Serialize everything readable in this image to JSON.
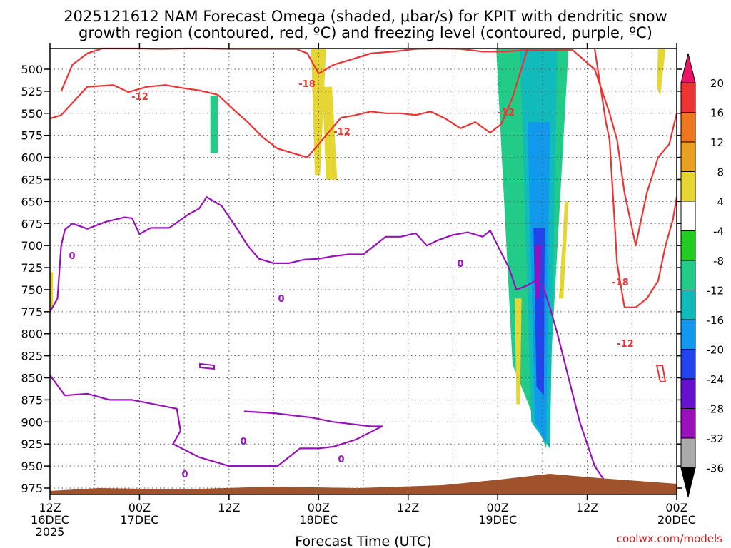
{
  "chart_data": {
    "type": "time-pressure cross-section (shaded omega with contours)",
    "title_line1": "2025121612 NAM Forecast Omega (shaded, μbar/s) for KPIT with dendritic snow",
    "title_line2": "growth region (contoured, red, ºC) and freezing level (contoured, purple, ºC)",
    "xlabel": "Forecast Time (UTC)",
    "credit": "coolwx.com/models",
    "x_ticks": [
      {
        "hour": 0,
        "line1": "12Z",
        "line2": "16DEC",
        "line3": "2025"
      },
      {
        "hour": 12,
        "line1": "00Z",
        "line2": "17DEC",
        "line3": ""
      },
      {
        "hour": 24,
        "line1": "12Z",
        "line2": "",
        "line3": ""
      },
      {
        "hour": 36,
        "line1": "00Z",
        "line2": "18DEC",
        "line3": ""
      },
      {
        "hour": 48,
        "line1": "12Z",
        "line2": "",
        "line3": ""
      },
      {
        "hour": 60,
        "line1": "00Z",
        "line2": "19DEC",
        "line3": ""
      },
      {
        "hour": 72,
        "line1": "12Z",
        "line2": "",
        "line3": ""
      },
      {
        "hour": 84,
        "line1": "00Z",
        "line2": "20DEC",
        "line3": ""
      }
    ],
    "x_range_hours": [
      0,
      84
    ],
    "y_range_hpa": [
      475,
      990
    ],
    "y_ticks": [
      "500",
      "525",
      "550",
      "575",
      "600",
      "625",
      "650",
      "675",
      "700",
      "725",
      "750",
      "775",
      "800",
      "825",
      "850",
      "875",
      "900",
      "925",
      "950",
      "975"
    ],
    "colorbar": {
      "labels": [
        "20",
        "16",
        "12",
        "8",
        "4",
        "-4",
        "-8",
        "-12",
        "-16",
        "-20",
        "-24",
        "-28",
        "-32",
        "-36"
      ],
      "colors": [
        "#ee1166",
        "#ee3333",
        "#ee7722",
        "#e8a020",
        "#e6d633",
        "#ffffff",
        "#22cc22",
        "#22cc88",
        "#11bbbb",
        "#1199ee",
        "#2244ee",
        "#6611cc",
        "#9911bb",
        "#aaaaaa",
        "#000000"
      ]
    },
    "series": [
      {
        "name": "Omega shaded (μbar/s)",
        "kind": "filled",
        "regions": [
          {
            "value": 4,
            "t": [
              35.0,
              37.0,
              36.2,
              35.5
            ],
            "p": [
              475,
              475,
              620,
              620
            ]
          },
          {
            "value": 4,
            "t": [
              36.5,
              37.8,
              38.5,
              37.0
            ],
            "p": [
              520,
              520,
              625,
              625
            ]
          },
          {
            "value": -8,
            "t": [
              21.5,
              22.5,
              22.5,
              21.5
            ],
            "p": [
              530,
              530,
              595,
              595
            ]
          },
          {
            "value": -8,
            "t": [
              59.8,
              69.5,
              66.5,
              62.0
            ],
            "p": [
              475,
              475,
              930,
              835
            ]
          },
          {
            "value": -12,
            "t": [
              63.0,
              68.0,
              67.0,
              64.5
            ],
            "p": [
              475,
              475,
              930,
              900
            ]
          },
          {
            "value": -16,
            "t": [
              64.0,
              67.0,
              66.5,
              65.0
            ],
            "p": [
              560,
              560,
              925,
              900
            ]
          },
          {
            "value": -20,
            "t": [
              64.8,
              66.3,
              66.2,
              65.2
            ],
            "p": [
              680,
              680,
              870,
              860
            ]
          },
          {
            "value": -28,
            "t": [
              65.0,
              65.8,
              65.6,
              65.1
            ],
            "p": [
              700,
              700,
              760,
              760
            ]
          },
          {
            "value": 4,
            "t": [
              62.3,
              63.2,
              63.0,
              62.5
            ],
            "p": [
              760,
              760,
              880,
              880
            ]
          },
          {
            "value": 4,
            "t": [
              69.0,
              69.5,
              68.8,
              68.2
            ],
            "p": [
              650,
              650,
              760,
              760
            ]
          },
          {
            "value": 4,
            "t": [
              81.5,
              82.5,
              81.8,
              81.3
            ],
            "p": [
              475,
              475,
              530,
              520
            ]
          },
          {
            "value": 0.5,
            "t": [
              0,
              0.4,
              0.4,
              0
            ],
            "p": [
              730,
              730,
              770,
              770
            ]
          }
        ]
      },
      {
        "name": "Dendritic growth -12 °C",
        "kind": "contour",
        "color": "#ee3333",
        "t": [
          0,
          1.5,
          5,
          8.5,
          10.5,
          13,
          15.5,
          17.5,
          20,
          22.5,
          24.5,
          26.5,
          28.5,
          30.5,
          32.5,
          34.5,
          37,
          39,
          41,
          43,
          45,
          47,
          49,
          51,
          53,
          55,
          57,
          59,
          60.5,
          62,
          64
        ],
        "p": [
          556,
          552,
          520,
          518,
          526,
          520,
          518,
          521,
          524,
          529,
          545,
          560,
          577,
          590,
          595,
          600,
          575,
          555,
          552,
          548,
          550,
          550,
          552,
          548,
          556,
          567,
          560,
          572,
          562,
          532,
          475
        ]
      },
      {
        "name": "Dendritic growth -12 °C (eastern)",
        "kind": "contour",
        "color": "#ee3333",
        "t": [
          73,
          74.5,
          75,
          75.5,
          76,
          77,
          78.5,
          80,
          81.5,
          82.5,
          83.5,
          84
        ],
        "p": [
          475,
          560,
          580,
          650,
          720,
          770,
          770,
          760,
          740,
          700,
          670,
          645
        ]
      },
      {
        "name": "Dendritic growth -18 °C",
        "kind": "contour",
        "color": "#ee3333",
        "t": [
          1.5,
          3,
          5,
          7,
          9,
          12,
          15,
          18,
          21,
          24,
          27,
          30,
          33,
          34.5,
          36,
          38,
          40,
          43,
          46,
          49,
          52,
          55,
          58,
          61,
          64,
          67,
          70,
          73,
          75,
          76,
          77,
          78.5,
          80,
          81.5,
          83,
          84
        ],
        "p": [
          525,
          495,
          482,
          475,
          475,
          475,
          477,
          475,
          475,
          477,
          477,
          477,
          477,
          482,
          505,
          495,
          490,
          482,
          480,
          477,
          475,
          477,
          480,
          480,
          478,
          478,
          478,
          500,
          550,
          580,
          640,
          700,
          640,
          600,
          585,
          550
        ]
      },
      {
        "name": "Freezing level 0 °C",
        "kind": "contour",
        "color": "#9911bb",
        "t": [
          0,
          1,
          1.5,
          2,
          3,
          5,
          7.5,
          10,
          11,
          12,
          13.5,
          16,
          18.5,
          20,
          21,
          23,
          25,
          26.5,
          28,
          30,
          32,
          34,
          36,
          38,
          40,
          42,
          43.5,
          45,
          47,
          49,
          50.5,
          52,
          54,
          56,
          58,
          59,
          60,
          61.5,
          62.5,
          64,
          65,
          66,
          67,
          68,
          69.5,
          71,
          73,
          75,
          77
        ],
        "p": [
          775,
          760,
          700,
          682,
          675,
          681,
          673,
          668,
          669,
          687,
          680,
          680,
          665,
          658,
          645,
          655,
          680,
          700,
          715,
          720,
          720,
          716,
          715,
          712,
          710,
          710,
          700,
          690,
          690,
          686,
          700,
          694,
          688,
          685,
          690,
          683,
          700,
          725,
          750,
          745,
          740,
          745,
          770,
          800,
          850,
          900,
          950,
          975,
          985
        ]
      },
      {
        "name": "Freezing level 0 °C (lower)",
        "kind": "contour",
        "color": "#9911bb",
        "t": [
          0,
          2,
          5,
          8,
          11,
          14,
          17,
          17.5,
          16.5,
          20,
          24,
          28,
          30.5,
          33.5,
          36,
          38,
          41,
          44.5,
          43,
          38,
          35,
          30,
          26
        ],
        "p": [
          847,
          870,
          868,
          875,
          875,
          880,
          885,
          910,
          925,
          940,
          950,
          950,
          950,
          930,
          930,
          928,
          920,
          905,
          905,
          900,
          895,
          890,
          888
        ]
      }
    ]
  }
}
